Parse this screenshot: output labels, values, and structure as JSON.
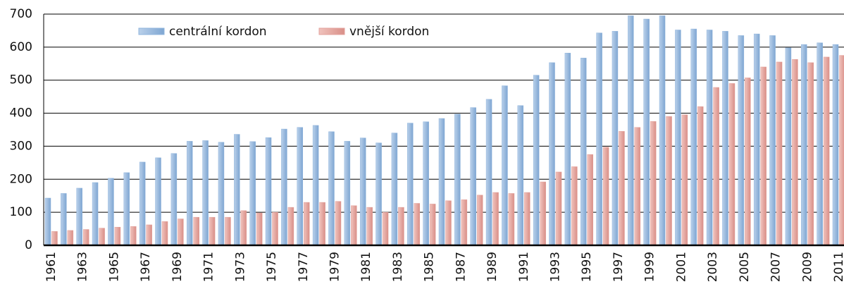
{
  "chart_data": {
    "type": "bar",
    "categories": [
      "1961",
      null,
      "1963",
      null,
      "1965",
      null,
      "1967",
      null,
      "1969",
      null,
      "1971",
      null,
      "1973",
      null,
      "1975",
      null,
      "1977",
      null,
      "1979",
      null,
      "1981",
      null,
      "1983",
      null,
      "1985",
      null,
      "1987",
      null,
      "1989",
      null,
      "1991",
      null,
      "1993",
      null,
      "1995",
      null,
      "1997",
      null,
      "1999",
      null,
      "2001",
      null,
      "2003",
      null,
      "2005",
      null,
      "2007",
      null,
      "2009",
      null,
      "2011"
    ],
    "series": [
      {
        "name": "centrální kordon",
        "color": "#8fb4dc",
        "values": [
          143,
          157,
          173,
          190,
          203,
          220,
          252,
          265,
          278,
          315,
          317,
          312,
          336,
          314,
          326,
          352,
          357,
          363,
          344,
          315,
          325,
          310,
          340,
          370,
          374,
          384,
          397,
          417,
          442,
          483,
          423,
          515,
          553,
          582,
          567,
          643,
          648,
          695,
          685,
          695,
          652,
          655,
          652,
          648,
          635,
          640,
          635,
          598,
          608,
          613,
          608
        ]
      },
      {
        "name": "vnější kordon",
        "color": "#e3a29c",
        "values": [
          42,
          45,
          48,
          52,
          55,
          57,
          62,
          72,
          80,
          85,
          85,
          85,
          105,
          98,
          100,
          115,
          130,
          130,
          133,
          120,
          115,
          100,
          115,
          127,
          125,
          135,
          138,
          152,
          160,
          157,
          160,
          192,
          222,
          238,
          275,
          297,
          345,
          357,
          375,
          390,
          395,
          420,
          478,
          490,
          507,
          540,
          555,
          563,
          553,
          570,
          575
        ]
      }
    ],
    "ylim": [
      0,
      700
    ],
    "yticks": [
      0,
      100,
      200,
      300,
      400,
      500,
      600,
      700
    ],
    "grid": true,
    "legend": "top"
  }
}
